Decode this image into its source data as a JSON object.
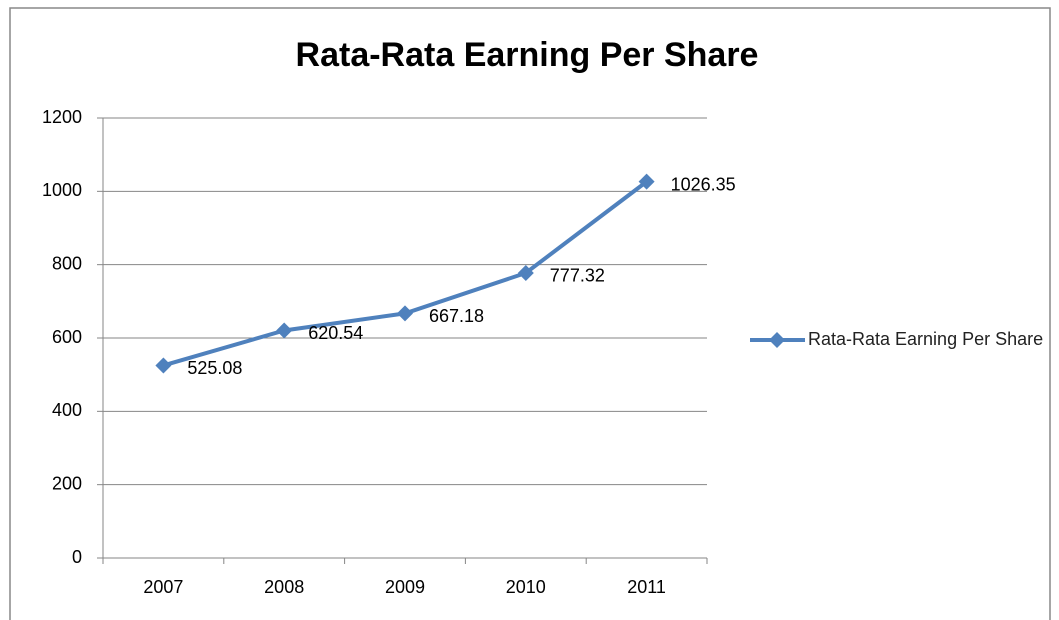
{
  "chart_data": {
    "type": "line",
    "title": "Rata-Rata Earning Per Share",
    "categories": [
      "2007",
      "2008",
      "2009",
      "2010",
      "2011"
    ],
    "series": [
      {
        "name": "Rata-Rata Earning Per Share",
        "color": "#4f81bd",
        "values": [
          525.08,
          620.54,
          667.18,
          777.32,
          1026.35
        ]
      }
    ],
    "ylim": [
      0,
      1200
    ],
    "yticks": [
      0,
      200,
      400,
      600,
      800,
      1000,
      1200
    ],
    "grid": true,
    "legend": "right"
  }
}
